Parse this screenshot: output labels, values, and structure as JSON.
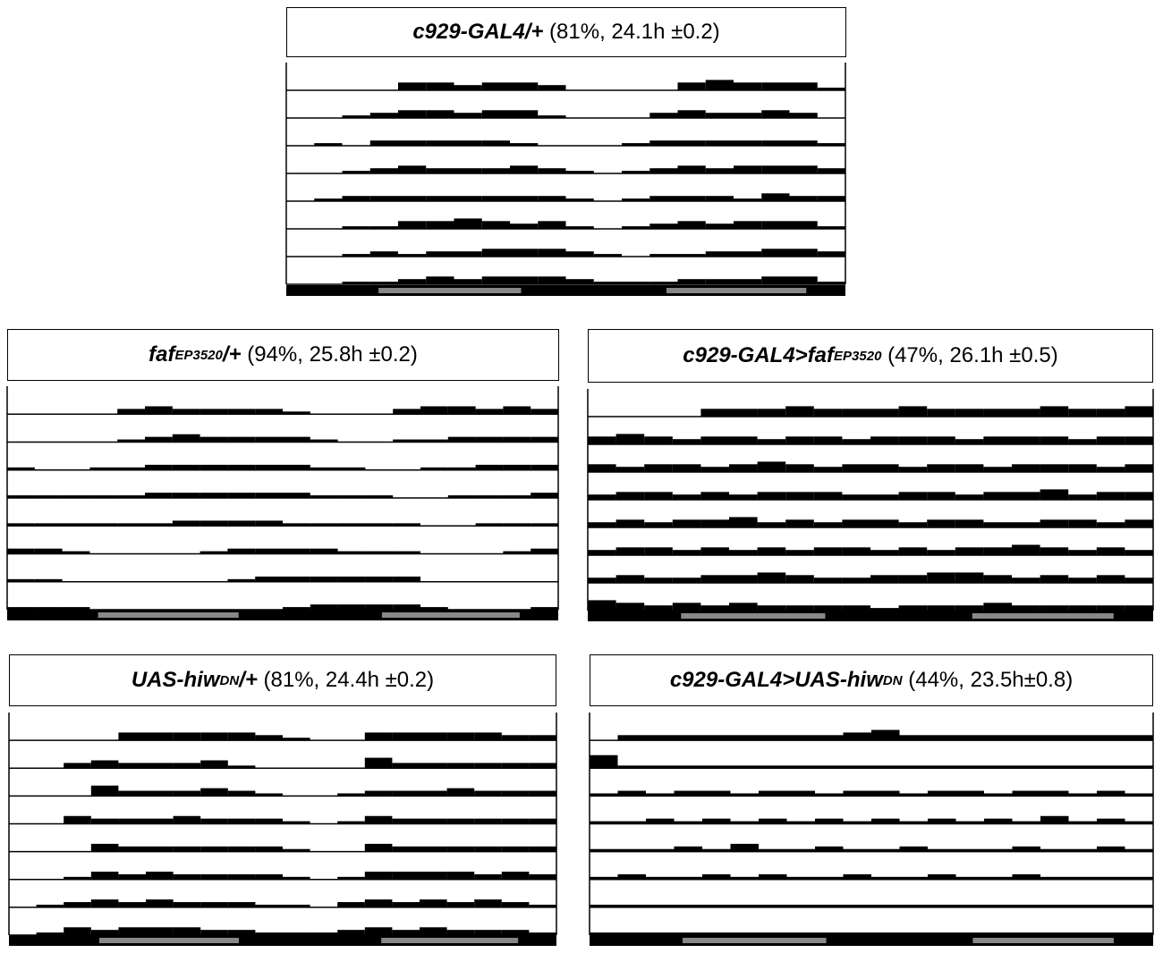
{
  "panels": [
    {
      "title": [
        {
          "text": "c929-GAL4/+",
          "italic": true
        },
        {
          "text": " (81%, 24.1h ±0.2)"
        }
      ],
      "rows": [
        [
          0,
          0,
          0,
          0,
          3,
          3,
          2,
          3,
          3,
          2,
          0,
          0,
          0,
          0,
          3,
          4,
          3,
          3,
          3,
          1
        ],
        [
          0,
          0,
          1,
          2,
          3,
          3,
          2,
          3,
          3,
          1,
          0,
          0,
          0,
          2,
          3,
          2,
          2,
          3,
          2,
          0
        ],
        [
          0,
          1,
          0,
          2,
          2,
          2,
          2,
          2,
          1,
          0,
          0,
          0,
          1,
          2,
          2,
          2,
          2,
          2,
          2,
          1
        ],
        [
          0,
          0,
          1,
          2,
          3,
          2,
          2,
          2,
          3,
          2,
          1,
          0,
          1,
          2,
          3,
          2,
          3,
          3,
          3,
          2
        ],
        [
          0,
          1,
          2,
          2,
          2,
          2,
          2,
          2,
          2,
          2,
          1,
          0,
          1,
          2,
          2,
          2,
          1,
          3,
          2,
          2
        ],
        [
          0,
          0,
          1,
          1,
          3,
          3,
          4,
          3,
          2,
          3,
          1,
          0,
          1,
          2,
          3,
          2,
          3,
          3,
          3,
          1
        ],
        [
          0,
          0,
          1,
          2,
          1,
          2,
          2,
          3,
          3,
          3,
          2,
          1,
          0,
          1,
          1,
          2,
          2,
          3,
          3,
          2
        ],
        [
          0,
          0,
          1,
          1,
          2,
          3,
          2,
          3,
          3,
          3,
          2,
          1,
          1,
          1,
          2,
          2,
          2,
          3,
          3,
          1
        ]
      ]
    },
    {
      "title": [
        {
          "text": "faf",
          "italic": true
        },
        {
          "text": "EP3520",
          "sup": true
        },
        {
          "text": "/+",
          "italic": true
        },
        {
          "text": " (94%, 25.8h ±0.2)"
        }
      ],
      "rows": [
        [
          0,
          0,
          0,
          0,
          2,
          3,
          2,
          2,
          2,
          2,
          1,
          0,
          0,
          0,
          2,
          3,
          3,
          2,
          3,
          2
        ],
        [
          0,
          0,
          0,
          0,
          1,
          2,
          3,
          2,
          2,
          2,
          2,
          1,
          0,
          0,
          1,
          1,
          2,
          2,
          2,
          2
        ],
        [
          1,
          0,
          0,
          1,
          1,
          2,
          2,
          2,
          2,
          2,
          2,
          1,
          1,
          0,
          0,
          1,
          1,
          2,
          2,
          2
        ],
        [
          1,
          1,
          1,
          1,
          1,
          2,
          2,
          2,
          2,
          2,
          2,
          1,
          1,
          1,
          0,
          0,
          1,
          1,
          1,
          2
        ],
        [
          1,
          1,
          1,
          1,
          1,
          1,
          2,
          2,
          2,
          2,
          1,
          1,
          1,
          1,
          1,
          0,
          0,
          1,
          1,
          1
        ],
        [
          2,
          2,
          1,
          0,
          0,
          0,
          0,
          1,
          2,
          2,
          2,
          2,
          1,
          1,
          1,
          0,
          0,
          0,
          1,
          2
        ],
        [
          1,
          1,
          0,
          0,
          0,
          0,
          0,
          0,
          1,
          2,
          2,
          2,
          2,
          2,
          2,
          0,
          0,
          0,
          0,
          0
        ],
        [
          1,
          1,
          1,
          0,
          0,
          0,
          0,
          0,
          0,
          0,
          1,
          2,
          2,
          2,
          2,
          1,
          0,
          0,
          0,
          1
        ]
      ]
    },
    {
      "title": [
        {
          "text": "c929-GAL4>faf",
          "italic": true
        },
        {
          "text": "EP3520",
          "sup": true
        },
        {
          "text": " (47%, 26.1h ±0.5)"
        }
      ],
      "rows": [
        [
          0,
          0,
          0,
          0,
          3,
          3,
          3,
          4,
          3,
          3,
          3,
          4,
          3,
          3,
          3,
          3,
          4,
          3,
          3,
          4
        ],
        [
          3,
          4,
          3,
          2,
          3,
          3,
          2,
          3,
          3,
          2,
          3,
          3,
          3,
          2,
          3,
          3,
          3,
          2,
          3,
          3
        ],
        [
          3,
          2,
          3,
          3,
          2,
          3,
          4,
          3,
          2,
          3,
          3,
          2,
          3,
          3,
          2,
          3,
          3,
          3,
          2,
          3
        ],
        [
          2,
          3,
          3,
          2,
          3,
          2,
          3,
          3,
          3,
          2,
          2,
          3,
          3,
          2,
          3,
          3,
          4,
          2,
          3,
          3
        ],
        [
          2,
          3,
          2,
          3,
          3,
          4,
          2,
          3,
          2,
          3,
          3,
          2,
          3,
          3,
          2,
          2,
          3,
          3,
          2,
          3
        ],
        [
          2,
          3,
          3,
          2,
          3,
          2,
          3,
          2,
          3,
          3,
          2,
          3,
          2,
          3,
          3,
          4,
          3,
          2,
          3,
          2
        ],
        [
          2,
          3,
          2,
          2,
          3,
          3,
          4,
          3,
          2,
          2,
          3,
          3,
          4,
          4,
          3,
          2,
          3,
          2,
          3,
          2
        ],
        [
          4,
          3,
          2,
          3,
          2,
          3,
          2,
          2,
          2,
          2,
          1,
          2,
          2,
          2,
          3,
          2,
          2,
          2,
          2,
          2
        ]
      ]
    },
    {
      "title": [
        {
          "text": "UAS-hiw",
          "italic": true
        },
        {
          "text": "DN",
          "sup": true
        },
        {
          "text": "/+",
          "italic": true
        },
        {
          "text": " (81%, 24.4h ±0.2)"
        }
      ],
      "rows": [
        [
          0,
          0,
          0,
          0,
          3,
          3,
          3,
          3,
          3,
          2,
          1,
          0,
          0,
          3,
          3,
          3,
          3,
          3,
          2,
          2
        ],
        [
          0,
          0,
          2,
          3,
          2,
          2,
          2,
          3,
          1,
          0,
          0,
          0,
          0,
          4,
          2,
          2,
          2,
          2,
          2,
          2
        ],
        [
          0,
          0,
          0,
          4,
          2,
          2,
          2,
          3,
          2,
          1,
          0,
          0,
          1,
          2,
          2,
          2,
          3,
          2,
          2,
          2
        ],
        [
          0,
          0,
          3,
          2,
          2,
          2,
          3,
          2,
          2,
          2,
          1,
          0,
          1,
          3,
          2,
          2,
          2,
          2,
          2,
          2
        ],
        [
          0,
          0,
          0,
          3,
          2,
          2,
          2,
          2,
          2,
          2,
          1,
          0,
          0,
          3,
          2,
          2,
          2,
          2,
          2,
          2
        ],
        [
          0,
          0,
          1,
          3,
          2,
          3,
          2,
          2,
          2,
          2,
          1,
          0,
          1,
          3,
          3,
          3,
          3,
          2,
          3,
          2
        ],
        [
          0,
          1,
          2,
          3,
          2,
          3,
          2,
          2,
          2,
          1,
          1,
          0,
          2,
          3,
          2,
          3,
          2,
          3,
          2,
          1
        ],
        [
          0,
          1,
          3,
          2,
          3,
          3,
          3,
          2,
          2,
          1,
          1,
          1,
          2,
          3,
          2,
          3,
          2,
          2,
          2,
          1
        ]
      ]
    },
    {
      "title": [
        {
          "text": "c929-GAL4>UAS-hiw",
          "italic": true
        },
        {
          "text": "DN",
          "sup": true
        },
        {
          "text": " (44%, 23.5h±0.8)"
        }
      ],
      "rows": [
        [
          0,
          2,
          2,
          2,
          2,
          2,
          2,
          2,
          2,
          3,
          4,
          2,
          2,
          2,
          2,
          2,
          2,
          2,
          2,
          2
        ],
        [
          5,
          1,
          1,
          1,
          1,
          1,
          1,
          1,
          1,
          1,
          1,
          1,
          1,
          1,
          1,
          1,
          1,
          1,
          1,
          1
        ],
        [
          1,
          2,
          1,
          2,
          2,
          1,
          2,
          2,
          1,
          2,
          2,
          1,
          2,
          2,
          1,
          2,
          2,
          1,
          2,
          1
        ],
        [
          1,
          1,
          2,
          1,
          2,
          1,
          2,
          1,
          2,
          1,
          2,
          1,
          2,
          1,
          2,
          1,
          3,
          1,
          2,
          1
        ],
        [
          1,
          1,
          1,
          2,
          1,
          3,
          1,
          1,
          2,
          1,
          1,
          2,
          1,
          1,
          1,
          2,
          1,
          1,
          2,
          1
        ],
        [
          1,
          2,
          1,
          1,
          2,
          1,
          2,
          1,
          1,
          2,
          1,
          1,
          2,
          1,
          1,
          2,
          1,
          1,
          1,
          1
        ],
        [
          1,
          1,
          1,
          1,
          1,
          1,
          1,
          1,
          1,
          1,
          1,
          1,
          1,
          1,
          1,
          1,
          1,
          1,
          1,
          1
        ],
        [
          1,
          1,
          1,
          1,
          1,
          1,
          1,
          1,
          1,
          1,
          1,
          1,
          1,
          1,
          1,
          1,
          1,
          1,
          1,
          1
        ]
      ]
    }
  ]
}
